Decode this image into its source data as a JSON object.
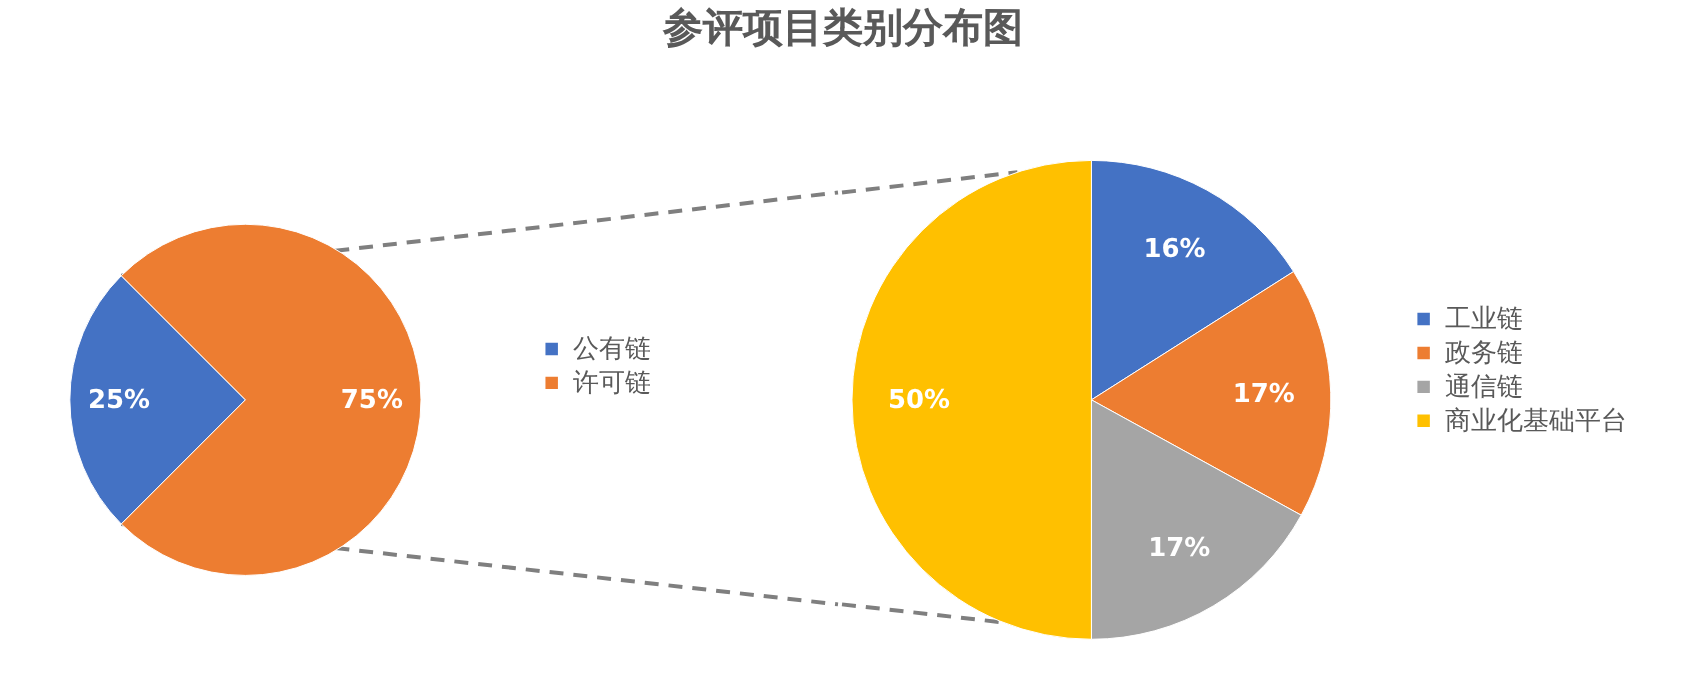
{
  "chart_data": [
    {
      "type": "pie",
      "title": "参评项目类别分布图",
      "categories": [
        "公有链",
        "许可链"
      ],
      "values": [
        25,
        75
      ],
      "colors": [
        "#4472c4",
        "#ed7d31"
      ],
      "value_labels": [
        "25%",
        "75%"
      ],
      "legend": "right"
    },
    {
      "type": "pie",
      "categories": [
        "工业链",
        "政务链",
        "通信链",
        "商业化基础平台"
      ],
      "values": [
        16,
        17,
        17,
        50
      ],
      "colors": [
        "#4472c4",
        "#ed7d31",
        "#a5a5a5",
        "#ffc000"
      ],
      "value_labels": [
        "16%",
        "17%",
        "17%",
        "50%"
      ],
      "legend": "right"
    }
  ]
}
